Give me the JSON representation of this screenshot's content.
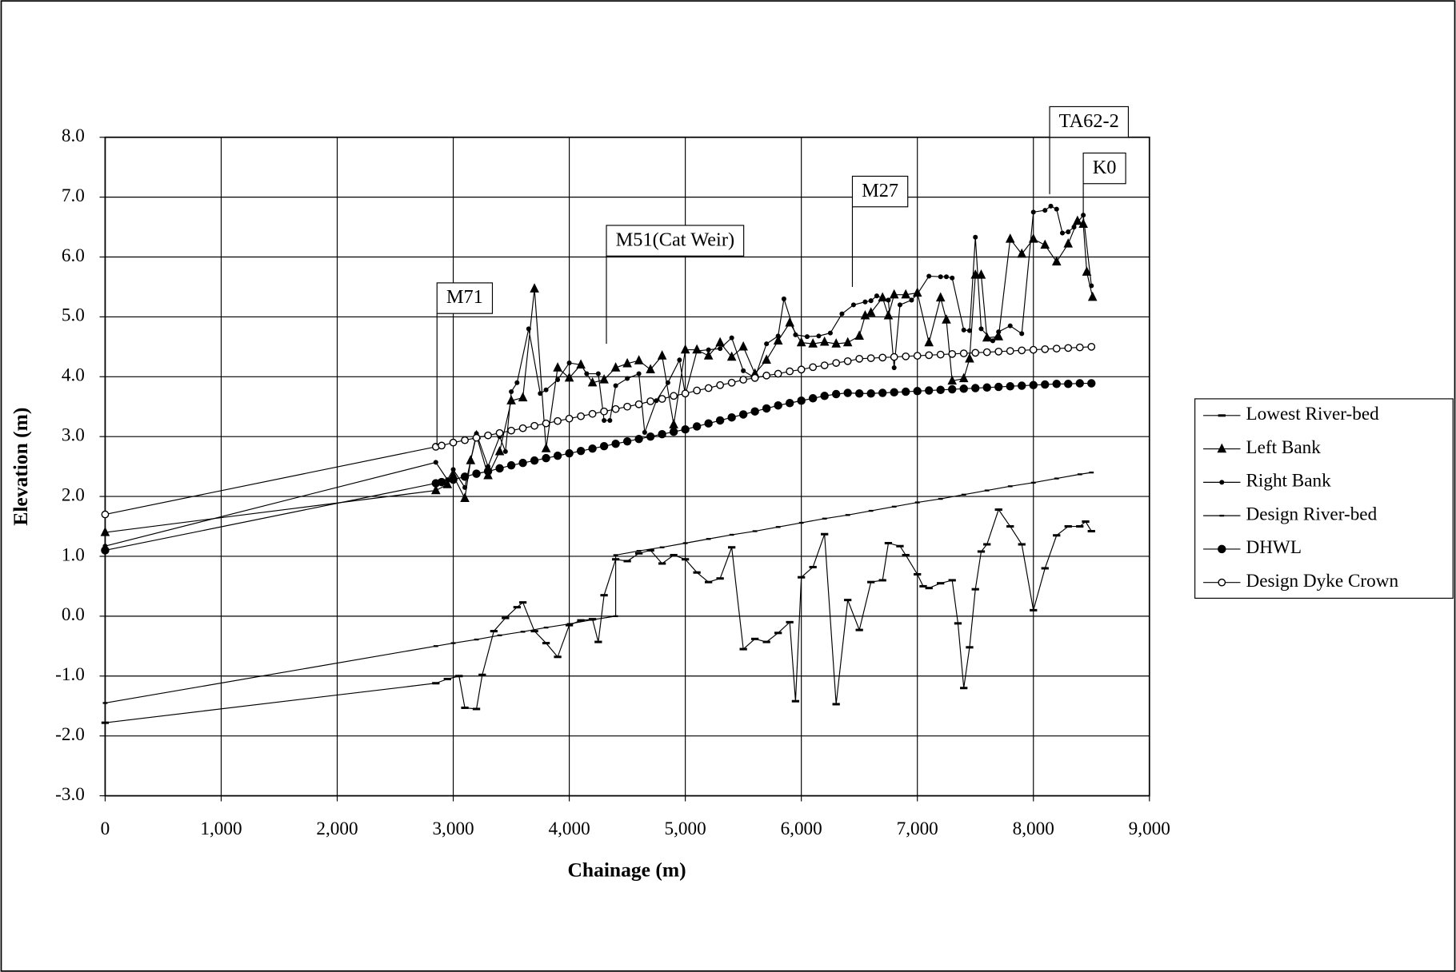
{
  "chart_data": {
    "type": "line",
    "x_label": "Chainage (m)",
    "y_label": "Elevation (m)",
    "xlim": [
      0,
      9000
    ],
    "ylim": [
      -3,
      8
    ],
    "grid": true,
    "legend": "right",
    "xticks": [
      0,
      {
        "value": 1000,
        "label": "1,000"
      },
      {
        "value": 2000,
        "label": "2,000"
      },
      {
        "value": 3000,
        "label": "3,000"
      },
      {
        "value": 4000,
        "label": "4,000"
      },
      {
        "value": 5000,
        "label": "5,000"
      },
      {
        "value": 6000,
        "label": "6,000"
      },
      {
        "value": 7000,
        "label": "7,000"
      },
      {
        "value": 8000,
        "label": "8,000"
      },
      {
        "value": 9000,
        "label": "9,000"
      }
    ],
    "yticks": [
      {
        "value": -3,
        "label": "-3.0"
      },
      {
        "value": -2,
        "label": "-2.0"
      },
      {
        "value": -1,
        "label": "-1.0"
      },
      {
        "value": 0,
        "label": "0.0"
      },
      {
        "value": 1,
        "label": "1.0"
      },
      {
        "value": 2,
        "label": "2.0"
      },
      {
        "value": 3,
        "label": "3.0"
      },
      {
        "value": 4,
        "label": "4.0"
      },
      {
        "value": 5,
        "label": "5.0"
      },
      {
        "value": 6,
        "label": "6.0"
      },
      {
        "value": 7,
        "label": "7.0"
      },
      {
        "value": 8,
        "label": "8.0"
      }
    ],
    "annotations": [
      {
        "text": "M71",
        "x": 2860,
        "y": 2.85
      },
      {
        "text": "M51(Cat Weir)",
        "x": 4320,
        "y": 4.55
      },
      {
        "text": "M27",
        "x": 6440,
        "y": 5.5
      },
      {
        "text": "TA62-2",
        "x": 8140,
        "y": 7.05
      },
      {
        "text": "K0",
        "x": 8430,
        "y": 6.6
      }
    ],
    "series": [
      {
        "name": "Lowest River-bed",
        "color": "#000000",
        "marker": "dash",
        "x": [
          0,
          2850,
          2950,
          3050,
          3100,
          3200,
          3250,
          3350,
          3450,
          3550,
          3600,
          3700,
          3800,
          3900,
          4000,
          4100,
          4200,
          4250,
          4300,
          4400,
          4500,
          4600,
          4700,
          4800,
          4900,
          5000,
          5100,
          5200,
          5300,
          5400,
          5500,
          5600,
          5700,
          5800,
          5900,
          5950,
          6000,
          6100,
          6200,
          6300,
          6400,
          6500,
          6600,
          6700,
          6750,
          6850,
          6900,
          7000,
          7050,
          7100,
          7200,
          7300,
          7350,
          7400,
          7450,
          7500,
          7550,
          7600,
          7700,
          7800,
          7900,
          8000,
          8100,
          8200,
          8300,
          8400,
          8450,
          8500
        ],
        "values": [
          -1.78,
          -1.12,
          -1.05,
          -1.0,
          -1.53,
          -1.55,
          -0.98,
          -0.25,
          -0.03,
          0.15,
          0.23,
          -0.25,
          -0.45,
          -0.68,
          -0.15,
          -0.07,
          -0.05,
          -0.43,
          0.35,
          0.95,
          0.92,
          1.05,
          1.1,
          0.88,
          1.02,
          0.95,
          0.73,
          0.57,
          0.63,
          1.15,
          -0.55,
          -0.38,
          -0.43,
          -0.28,
          -0.1,
          -1.42,
          0.65,
          0.82,
          1.37,
          -1.47,
          0.27,
          -0.23,
          0.57,
          0.6,
          1.22,
          1.17,
          1.02,
          0.7,
          0.5,
          0.47,
          0.55,
          0.6,
          -0.12,
          -1.2,
          -0.52,
          0.45,
          1.08,
          1.2,
          1.78,
          1.5,
          1.2,
          0.1,
          0.8,
          1.35,
          1.5,
          1.5,
          1.58,
          1.42
        ]
      },
      {
        "name": "Left Bank",
        "color": "#000000",
        "marker": "triangle",
        "x": [
          0,
          2850,
          2950,
          3000,
          3100,
          3150,
          3200,
          3300,
          3400,
          3500,
          3600,
          3700,
          3800,
          3900,
          4000,
          4100,
          4200,
          4300,
          4400,
          4500,
          4600,
          4700,
          4800,
          4900,
          5000,
          5100,
          5200,
          5300,
          5400,
          5500,
          5600,
          5700,
          5800,
          5900,
          6000,
          6100,
          6200,
          6300,
          6400,
          6500,
          6550,
          6600,
          6700,
          6750,
          6800,
          6900,
          7000,
          7100,
          7200,
          7250,
          7300,
          7400,
          7450,
          7500,
          7550,
          7600,
          7700,
          7800,
          7900,
          8000,
          8100,
          8200,
          8300,
          8380,
          8430,
          8460,
          8510
        ],
        "values": [
          1.4,
          2.1,
          2.2,
          2.35,
          1.97,
          2.6,
          3.02,
          2.35,
          2.75,
          3.6,
          3.65,
          5.47,
          2.8,
          4.15,
          3.98,
          4.2,
          3.9,
          3.95,
          4.15,
          4.22,
          4.27,
          4.12,
          4.35,
          3.2,
          4.45,
          4.45,
          4.35,
          4.57,
          4.33,
          4.5,
          4.05,
          4.28,
          4.6,
          4.9,
          4.57,
          4.55,
          4.58,
          4.55,
          4.57,
          4.68,
          5.02,
          5.07,
          5.32,
          5.02,
          5.37,
          5.37,
          5.4,
          4.57,
          5.32,
          4.95,
          3.93,
          3.97,
          4.3,
          5.7,
          5.7,
          4.65,
          4.67,
          6.3,
          6.05,
          6.3,
          6.2,
          5.92,
          6.22,
          6.6,
          6.55,
          5.75,
          5.33
        ]
      },
      {
        "name": "Right Bank",
        "color": "#000000",
        "marker": "dot",
        "x": [
          0,
          2850,
          2950,
          3000,
          3100,
          3200,
          3300,
          3400,
          3450,
          3500,
          3550,
          3650,
          3750,
          3800,
          3900,
          4000,
          4100,
          4150,
          4250,
          4300,
          4350,
          4400,
          4500,
          4600,
          4650,
          4750,
          4850,
          4950,
          5000,
          5100,
          5200,
          5300,
          5400,
          5500,
          5600,
          5700,
          5800,
          5850,
          5950,
          6050,
          6150,
          6250,
          6350,
          6450,
          6550,
          6600,
          6650,
          6750,
          6800,
          6850,
          6950,
          7000,
          7100,
          7200,
          7250,
          7300,
          7400,
          7450,
          7500,
          7550,
          7650,
          7700,
          7800,
          7900,
          8000,
          8100,
          8150,
          8200,
          8250,
          8300,
          8350,
          8430,
          8500
        ],
        "values": [
          1.17,
          2.57,
          2.28,
          2.45,
          2.15,
          3.05,
          2.5,
          3.0,
          2.75,
          3.75,
          3.9,
          4.8,
          3.72,
          3.78,
          3.95,
          4.23,
          4.2,
          4.05,
          4.05,
          3.27,
          3.27,
          3.85,
          3.97,
          4.05,
          3.07,
          3.6,
          3.9,
          4.28,
          3.7,
          4.43,
          4.45,
          4.47,
          4.65,
          4.1,
          3.98,
          4.55,
          4.68,
          5.3,
          4.7,
          4.67,
          4.68,
          4.73,
          5.05,
          5.2,
          5.25,
          5.27,
          5.35,
          5.28,
          4.15,
          5.2,
          5.28,
          5.38,
          5.68,
          5.67,
          5.67,
          5.65,
          4.78,
          4.77,
          6.33,
          4.8,
          4.6,
          4.75,
          4.85,
          4.72,
          6.75,
          6.78,
          6.85,
          6.8,
          6.4,
          6.42,
          6.5,
          6.7,
          5.52
        ]
      },
      {
        "name": "Design River-bed",
        "color": "#000000",
        "marker": "tick",
        "x": [
          0,
          2850,
          3000,
          3200,
          3400,
          3600,
          3800,
          4000,
          4200,
          4400,
          4400,
          4600,
          4800,
          5000,
          5200,
          5400,
          5600,
          5800,
          6000,
          6200,
          6400,
          6600,
          6800,
          7000,
          7200,
          7400,
          7600,
          7800,
          8000,
          8200,
          8400,
          8500
        ],
        "values": [
          -1.45,
          -0.5,
          -0.45,
          -0.39,
          -0.32,
          -0.26,
          -0.19,
          -0.13,
          -0.06,
          0.0,
          1.02,
          1.09,
          1.15,
          1.22,
          1.29,
          1.36,
          1.42,
          1.49,
          1.56,
          1.63,
          1.69,
          1.76,
          1.83,
          1.9,
          1.96,
          2.03,
          2.1,
          2.17,
          2.23,
          2.3,
          2.37,
          2.4
        ]
      },
      {
        "name": "DHWL",
        "color": "#000000",
        "marker": "bigdot",
        "x": [
          0,
          2850,
          2900,
          3000,
          3100,
          3200,
          3300,
          3400,
          3500,
          3600,
          3700,
          3800,
          3900,
          4000,
          4100,
          4200,
          4300,
          4400,
          4500,
          4600,
          4700,
          4800,
          4900,
          5000,
          5100,
          5200,
          5300,
          5400,
          5500,
          5600,
          5700,
          5800,
          5900,
          6000,
          6100,
          6200,
          6300,
          6400,
          6500,
          6600,
          6700,
          6800,
          6900,
          7000,
          7100,
          7200,
          7300,
          7400,
          7500,
          7600,
          7700,
          7800,
          7900,
          8000,
          8100,
          8200,
          8300,
          8400,
          8500
        ],
        "values": [
          1.1,
          2.22,
          2.24,
          2.28,
          2.33,
          2.38,
          2.42,
          2.47,
          2.52,
          2.56,
          2.6,
          2.64,
          2.68,
          2.72,
          2.76,
          2.8,
          2.84,
          2.88,
          2.92,
          2.96,
          3.0,
          3.04,
          3.08,
          3.12,
          3.17,
          3.22,
          3.27,
          3.32,
          3.37,
          3.42,
          3.47,
          3.52,
          3.56,
          3.6,
          3.64,
          3.68,
          3.71,
          3.73,
          3.72,
          3.72,
          3.73,
          3.74,
          3.75,
          3.76,
          3.77,
          3.78,
          3.79,
          3.8,
          3.81,
          3.82,
          3.83,
          3.84,
          3.85,
          3.86,
          3.87,
          3.88,
          3.88,
          3.89,
          3.89
        ]
      },
      {
        "name": "Design Dyke Crown",
        "color": "#000000",
        "marker": "ring",
        "x": [
          0,
          2850,
          2900,
          3000,
          3100,
          3200,
          3300,
          3400,
          3500,
          3600,
          3700,
          3800,
          3900,
          4000,
          4100,
          4200,
          4300,
          4400,
          4500,
          4600,
          4700,
          4800,
          4900,
          5000,
          5100,
          5200,
          5300,
          5400,
          5500,
          5600,
          5700,
          5800,
          5900,
          6000,
          6100,
          6200,
          6300,
          6400,
          6500,
          6600,
          6700,
          6800,
          6900,
          7000,
          7100,
          7200,
          7300,
          7400,
          7500,
          7600,
          7700,
          7800,
          7900,
          8000,
          8100,
          8200,
          8300,
          8400,
          8500
        ],
        "values": [
          1.7,
          2.83,
          2.85,
          2.9,
          2.94,
          2.98,
          3.02,
          3.06,
          3.1,
          3.14,
          3.18,
          3.22,
          3.26,
          3.3,
          3.34,
          3.38,
          3.42,
          3.46,
          3.5,
          3.54,
          3.59,
          3.63,
          3.68,
          3.72,
          3.77,
          3.81,
          3.86,
          3.9,
          3.95,
          3.98,
          4.02,
          4.05,
          4.09,
          4.12,
          4.16,
          4.19,
          4.23,
          4.26,
          4.3,
          4.31,
          4.32,
          4.33,
          4.34,
          4.35,
          4.36,
          4.37,
          4.38,
          4.39,
          4.4,
          4.41,
          4.42,
          4.43,
          4.44,
          4.45,
          4.46,
          4.47,
          4.48,
          4.49,
          4.5
        ]
      }
    ]
  }
}
